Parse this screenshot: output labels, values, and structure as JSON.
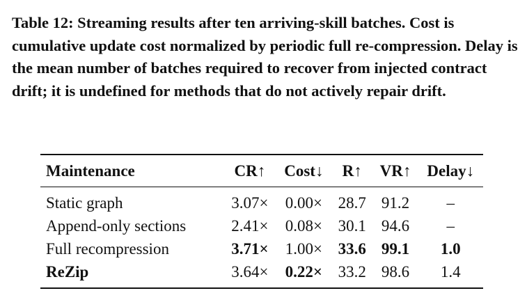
{
  "caption": "Table 12: Streaming results after ten arriving-skill batches. Cost is cumulative update cost normalized by periodic full re-compression. Delay is the mean number of batches required to recover from injected contract drift; it is undefined for methods that do not actively repair drift.",
  "table": {
    "headers": [
      "Maintenance",
      "CR↑",
      "Cost↓",
      "R↑",
      "VR↑",
      "Delay↓"
    ],
    "rows": [
      {
        "method": "Static graph",
        "cr": "3.07×",
        "cost": "0.00×",
        "r": "28.7",
        "vr": "91.2",
        "delay": "–"
      },
      {
        "method": "Append-only sections",
        "cr": "2.41×",
        "cost": "0.08×",
        "r": "30.1",
        "vr": "94.6",
        "delay": "–"
      },
      {
        "method": "Full recompression",
        "cr": "3.71×",
        "cost": "1.00×",
        "r": "33.6",
        "vr": "99.1",
        "delay": "1.0"
      },
      {
        "method": "ReZip",
        "cr": "3.64×",
        "cost": "0.22×",
        "r": "33.2",
        "vr": "98.6",
        "delay": "1.4"
      }
    ]
  }
}
